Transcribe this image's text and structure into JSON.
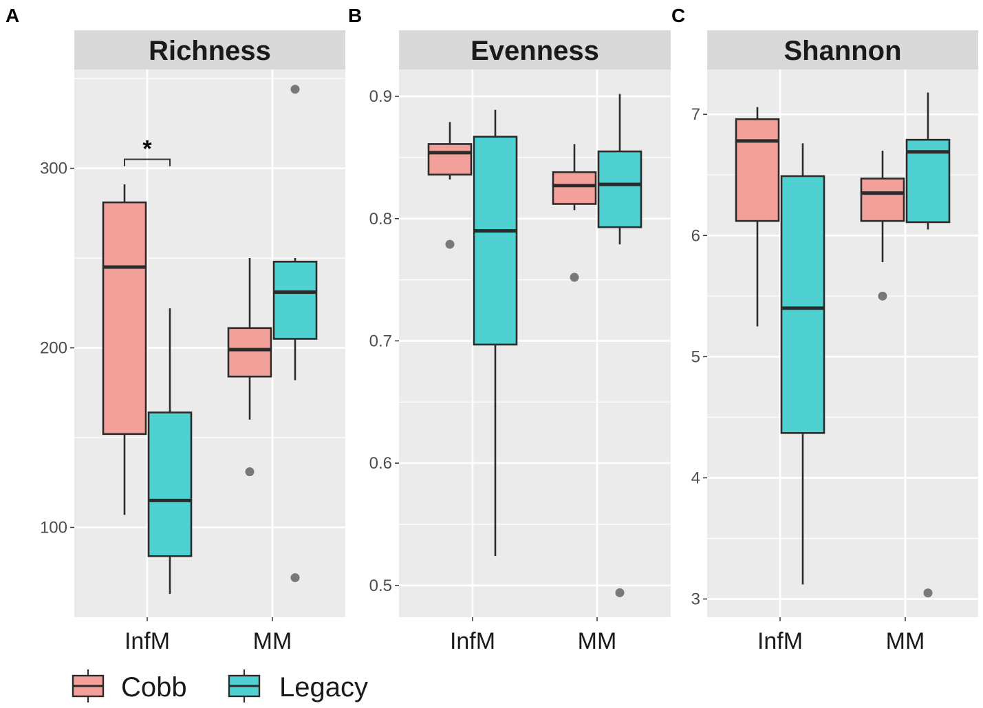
{
  "chart_data": [
    {
      "type": "box",
      "panel_letter": "A",
      "title": "Richness",
      "categories": [
        "InfM",
        "MM"
      ],
      "yticks": [
        100,
        200,
        300
      ],
      "ylim": [
        50,
        355
      ],
      "series": [
        {
          "name": "Cobb",
          "color": "#f4a09a",
          "boxes": [
            {
              "category": "InfM",
              "min": 107,
              "q1": 152,
              "median": 245,
              "q3": 281,
              "max": 291,
              "outliers": []
            },
            {
              "category": "MM",
              "min": 160,
              "q1": 184,
              "median": 199,
              "q3": 211,
              "max": 250,
              "outliers": [
                131
              ]
            }
          ]
        },
        {
          "name": "Legacy",
          "color": "#4fd1d1",
          "boxes": [
            {
              "category": "InfM",
              "min": 63,
              "q1": 84,
              "median": 115,
              "q3": 164,
              "max": 222,
              "outliers": []
            },
            {
              "category": "MM",
              "min": 182,
              "q1": 205,
              "median": 231,
              "q3": 248,
              "max": 250,
              "outliers": [
                344,
                72
              ]
            }
          ]
        }
      ],
      "annotation": {
        "label": "*",
        "category": "InfM",
        "y": 305
      }
    },
    {
      "type": "box",
      "panel_letter": "B",
      "title": "Evenness",
      "categories": [
        "InfM",
        "MM"
      ],
      "yticks": [
        0.5,
        0.6,
        0.7,
        0.8,
        0.9
      ],
      "ylim": [
        0.474,
        0.922
      ],
      "series": [
        {
          "name": "Cobb",
          "color": "#f4a09a",
          "boxes": [
            {
              "category": "InfM",
              "min": 0.832,
              "q1": 0.836,
              "median": 0.854,
              "q3": 0.861,
              "max": 0.879,
              "outliers": [
                0.779
              ]
            },
            {
              "category": "MM",
              "min": 0.807,
              "q1": 0.812,
              "median": 0.827,
              "q3": 0.838,
              "max": 0.861,
              "outliers": [
                0.752
              ]
            }
          ]
        },
        {
          "name": "Legacy",
          "color": "#4fd1d1",
          "boxes": [
            {
              "category": "InfM",
              "min": 0.524,
              "q1": 0.697,
              "median": 0.79,
              "q3": 0.867,
              "max": 0.889,
              "outliers": []
            },
            {
              "category": "MM",
              "min": 0.779,
              "q1": 0.793,
              "median": 0.828,
              "q3": 0.855,
              "max": 0.902,
              "outliers": [
                0.494
              ]
            }
          ]
        }
      ]
    },
    {
      "type": "box",
      "panel_letter": "C",
      "title": "Shannon",
      "categories": [
        "InfM",
        "MM"
      ],
      "yticks": [
        3,
        4,
        5,
        6,
        7
      ],
      "ylim": [
        2.85,
        7.37
      ],
      "series": [
        {
          "name": "Cobb",
          "color": "#f4a09a",
          "boxes": [
            {
              "category": "InfM",
              "min": 5.25,
              "q1": 6.12,
              "median": 6.78,
              "q3": 6.96,
              "max": 7.06,
              "outliers": []
            },
            {
              "category": "MM",
              "min": 5.78,
              "q1": 6.12,
              "median": 6.35,
              "q3": 6.47,
              "max": 6.7,
              "outliers": [
                5.5
              ]
            }
          ]
        },
        {
          "name": "Legacy",
          "color": "#4fd1d1",
          "boxes": [
            {
              "category": "InfM",
              "min": 3.12,
              "q1": 4.37,
              "median": 5.4,
              "q3": 6.49,
              "max": 6.76,
              "outliers": []
            },
            {
              "category": "MM",
              "min": 6.05,
              "q1": 6.11,
              "median": 6.69,
              "q3": 6.79,
              "max": 7.18,
              "outliers": [
                3.05
              ]
            }
          ]
        }
      ]
    }
  ],
  "legend": {
    "position": "bottom-left",
    "items": [
      {
        "label": "Cobb",
        "color": "#f4a09a"
      },
      {
        "label": "Legacy",
        "color": "#4fd1d1"
      }
    ]
  }
}
